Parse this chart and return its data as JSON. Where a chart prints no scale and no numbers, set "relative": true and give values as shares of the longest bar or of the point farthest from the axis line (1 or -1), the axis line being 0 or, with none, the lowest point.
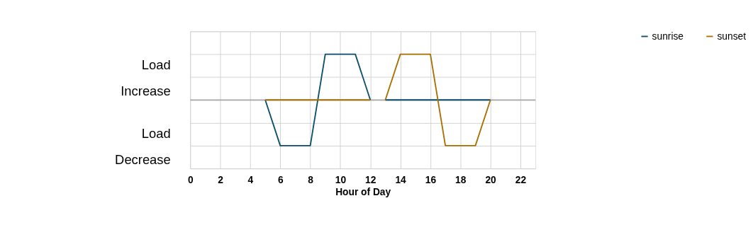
{
  "chart_data": {
    "type": "line",
    "xlabel": "Hour of Day",
    "relative": true,
    "xlim": [
      0,
      23
    ],
    "xticks": [
      0,
      2,
      4,
      6,
      8,
      10,
      12,
      14,
      16,
      18,
      20,
      22
    ],
    "annotations": [
      "Load Increase",
      "Load Decrease"
    ],
    "grid": true,
    "legend": "right",
    "line_style": "solid",
    "marker": "none",
    "series": [
      {
        "name": "sunrise",
        "color": "#0b4f6c",
        "x": [
          5,
          6,
          8,
          9,
          11,
          12,
          12.5,
          13,
          20
        ],
        "values": [
          0,
          -1,
          -1,
          1,
          1,
          0,
          null,
          0,
          0
        ]
      },
      {
        "name": "sunset",
        "color": "#a87000",
        "x": [
          5,
          12,
          12.5,
          13,
          14,
          16,
          17,
          19,
          20
        ],
        "values": [
          0,
          0,
          null,
          0,
          1,
          1,
          -1,
          -1,
          0
        ]
      }
    ]
  }
}
